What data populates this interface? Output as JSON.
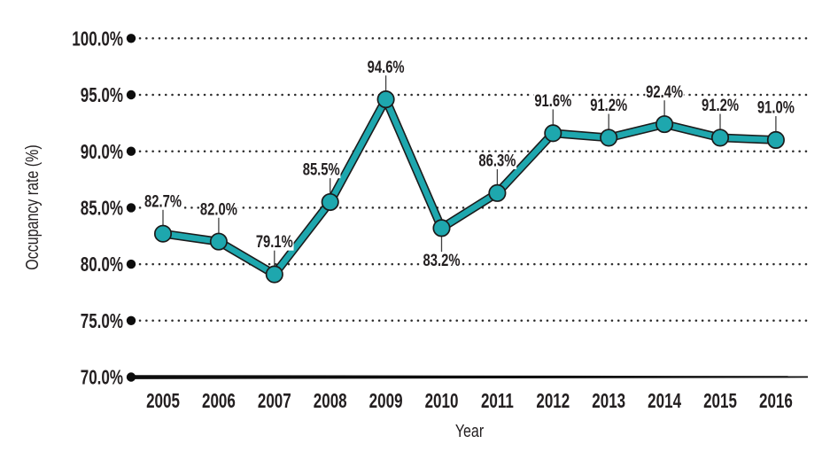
{
  "chart_data": {
    "type": "line",
    "title": "",
    "xlabel": "Year",
    "ylabel": "Occupancy rate (%)",
    "categories": [
      "2005",
      "2006",
      "2007",
      "2008",
      "2009",
      "2010",
      "2011",
      "2012",
      "2013",
      "2014",
      "2015",
      "2016"
    ],
    "values": [
      82.7,
      82.0,
      79.1,
      85.5,
      94.6,
      83.2,
      86.3,
      91.6,
      91.2,
      92.4,
      91.2,
      91.0
    ],
    "point_labels": [
      "82.7%",
      "82.0%",
      "79.1%",
      "85.5%",
      "94.6%",
      "83.2%",
      "86.3%",
      "91.6%",
      "91.2%",
      "92.4%",
      "91.2%",
      "91.0%"
    ],
    "y_ticks": [
      "100.0%",
      "95.0%",
      "90.0%",
      "85.0%",
      "80.0%",
      "75.0%",
      "70.0%"
    ],
    "y_tick_values": [
      100,
      95,
      90,
      85,
      80,
      75,
      70
    ],
    "ylim": [
      70,
      100
    ],
    "grid": "horizontal-dotted",
    "legend": "none",
    "marker": "circle",
    "label_layout": {
      "below_indices": [
        5
      ],
      "dx": [
        0,
        0,
        0,
        -10,
        0,
        0,
        0,
        0,
        0,
        0,
        0,
        0
      ]
    },
    "colors": {
      "line": "#1ea7ae",
      "marker_fill": "#1ea7ae",
      "outline": "#1b1b1b",
      "axis": "#0d0d0d",
      "grid_dot": "#2e2e2e",
      "leader": "#404040",
      "text": "#231f20",
      "background": "#ffffff"
    }
  }
}
